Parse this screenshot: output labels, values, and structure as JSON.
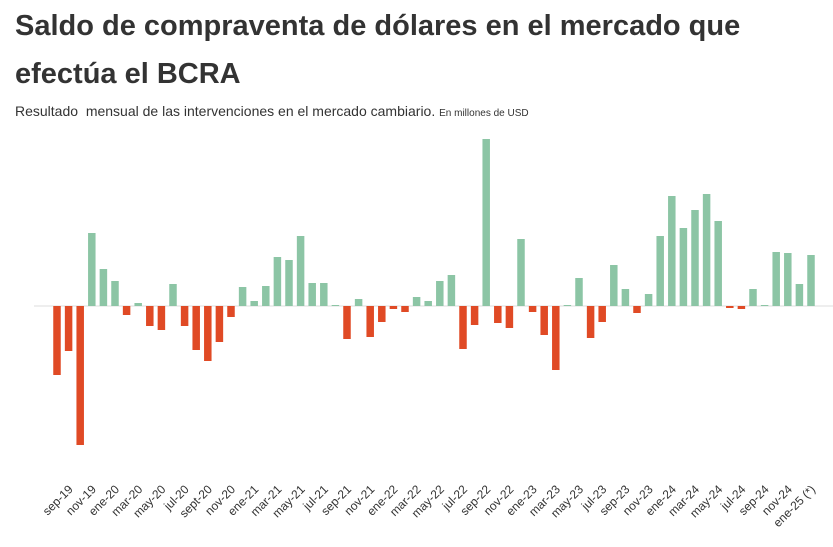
{
  "chart_data": {
    "type": "bar",
    "title": "Saldo de compraventa de dólares en el mercado que efectúa el BCRA",
    "subtitle": "Resultado  mensual de las intervenciones en el mercado cambiario.",
    "unit_note": "En millones de USD",
    "categories": [
      null,
      "sep-19",
      null,
      "nov-19",
      null,
      "ene-20",
      null,
      "mar-20",
      null,
      "may-20",
      null,
      "jul-20",
      null,
      "sept-20",
      null,
      "nov-20",
      null,
      "ene-21",
      null,
      "mar-21",
      null,
      "may-21",
      null,
      "jul-21",
      null,
      "sep-21",
      null,
      "nov-21",
      null,
      "ene-22",
      null,
      "mar-22",
      null,
      "may-22",
      null,
      "jul-22",
      null,
      "sep-22",
      null,
      "nov-22",
      null,
      "ene-23",
      null,
      "mar-23",
      null,
      "may-23",
      null,
      "jul-23",
      null,
      "sep-23",
      null,
      "nov-23",
      null,
      "ene-24",
      null,
      "mar-24",
      null,
      "may-24",
      null,
      "jul-24",
      null,
      "sep-24",
      null,
      "nov-24",
      null,
      "ene-25 (*)"
    ],
    "values": [
      -2070,
      -1350,
      -4170,
      2190,
      1110,
      750,
      -270,
      90,
      -600,
      -720,
      660,
      -600,
      -1320,
      -1650,
      -1080,
      -330,
      570,
      150,
      600,
      1470,
      1380,
      2100,
      690,
      690,
      30,
      -990,
      210,
      -930,
      -480,
      -90,
      -180,
      270,
      150,
      750,
      930,
      -1290,
      -570,
      5010,
      -510,
      -660,
      2010,
      -180,
      -870,
      -1920,
      30,
      840,
      -960,
      -480,
      1230,
      510,
      -210,
      360,
      2100,
      3300,
      2340,
      2880,
      3360,
      2550,
      -60,
      -90,
      510,
      30,
      1620,
      1590,
      660,
      1530
    ],
    "positive_color": "#8cc5a5",
    "negative_color": "#e04a25",
    "grid": false
  }
}
